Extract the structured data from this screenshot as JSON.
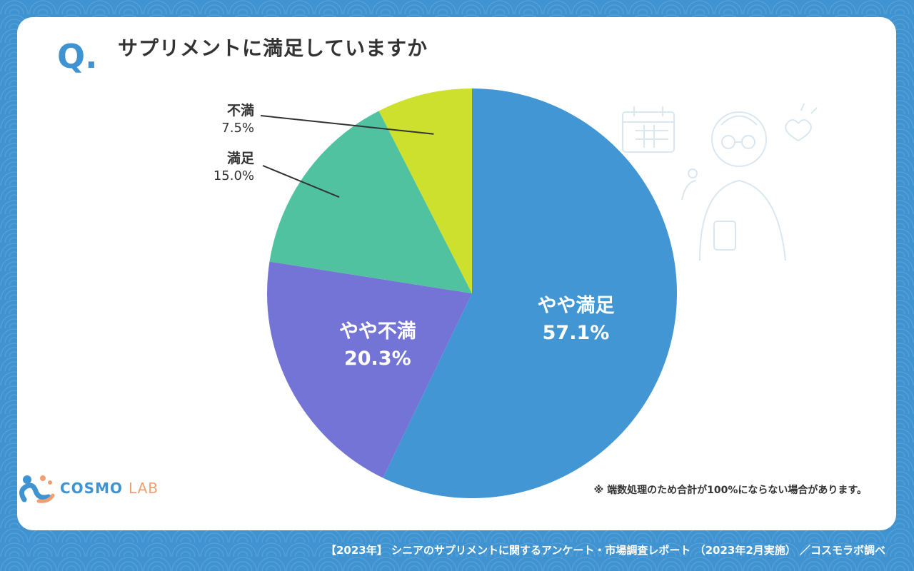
{
  "header": {
    "q_mark": "Q.",
    "title": "サプリメントに満足していますか"
  },
  "chart_data": {
    "type": "pie",
    "start_angle_deg": 0,
    "direction": "clockwise",
    "slices": [
      {
        "label": "やや満足",
        "value": 57.1,
        "value_label": "57.1%",
        "color": "#4196d3",
        "label_position": "inside"
      },
      {
        "label": "やや不満",
        "value": 20.3,
        "value_label": "20.3%",
        "color": "#7474d6",
        "label_position": "inside"
      },
      {
        "label": "満足",
        "value": 15.0,
        "value_label": "15.0%",
        "color": "#50c2a0",
        "label_position": "outside"
      },
      {
        "label": "不満",
        "value": 7.5,
        "value_label": "7.5%",
        "color": "#cce02d",
        "label_position": "outside"
      }
    ]
  },
  "note": "※ 端数処理のため合計が100%にならない場合があります。",
  "logo": {
    "part1": "COSMO",
    "part2": "LAB"
  },
  "footer": "【2023年】 シニアのサプリメントに関するアンケート・市場調査レポート （2023年2月実施） ／コスモラボ調べ"
}
